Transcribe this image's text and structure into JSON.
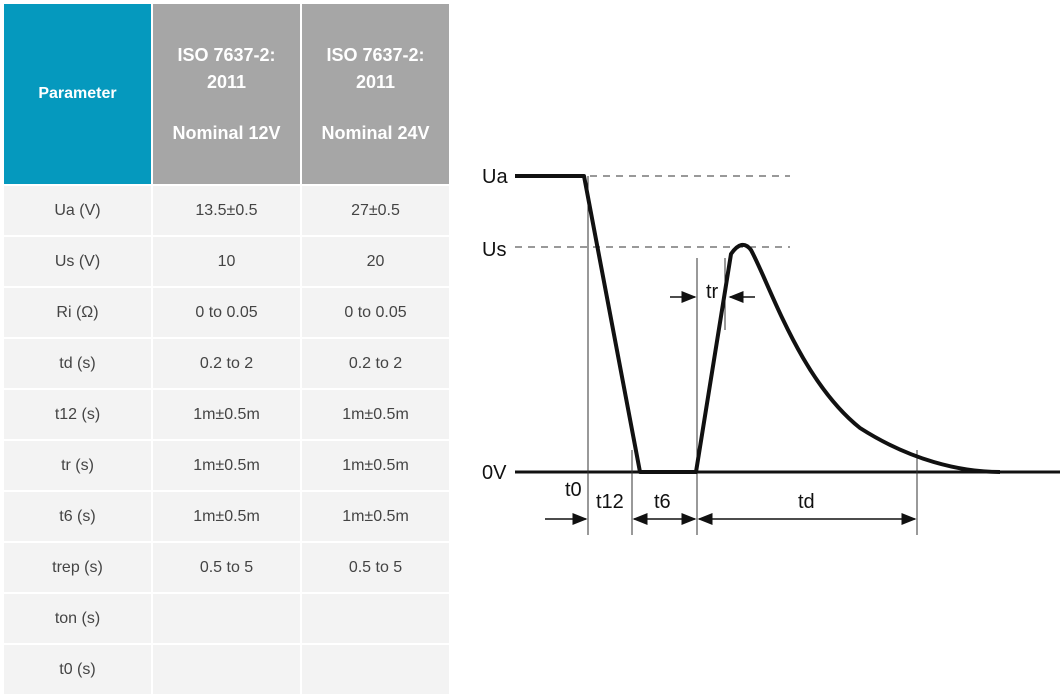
{
  "table": {
    "header": {
      "parameter": "Parameter",
      "col12": {
        "line1": "ISO 7637-2:",
        "line2": "2011",
        "line3": "Nominal 12V"
      },
      "col24": {
        "line1": "ISO 7637-2:",
        "line2": "2011",
        "line3": "Nominal 24V"
      }
    },
    "rows": [
      {
        "param": "Ua (V)",
        "v12": "13.5±0.5",
        "v24": "27±0.5"
      },
      {
        "param": "Us (V)",
        "v12": "10",
        "v24": "20"
      },
      {
        "param": "Ri (Ω)",
        "v12": "0 to 0.05",
        "v24": "0 to 0.05"
      },
      {
        "param": "td (s)",
        "v12": "0.2 to 2",
        "v24": "0.2 to 2"
      },
      {
        "param": "t12 (s)",
        "v12": "1m±0.5m",
        "v24": "1m±0.5m"
      },
      {
        "param": "tr (s)",
        "v12": "1m±0.5m",
        "v24": "1m±0.5m"
      },
      {
        "param": "t6 (s)",
        "v12": "1m±0.5m",
        "v24": "1m±0.5m"
      },
      {
        "param": "trep (s)",
        "v12": "0.5 to 5",
        "v24": "0.5 to 5"
      },
      {
        "param": "ton (s)",
        "v12": "",
        "v24": ""
      },
      {
        "param": "t0 (s)",
        "v12": "",
        "v24": ""
      }
    ],
    "colors": {
      "param_header": "#0599be",
      "std_header": "#a6a6a6",
      "cell_bg": "#f3f3f3"
    }
  },
  "diagram": {
    "labels": {
      "ua": "Ua",
      "us": "Us",
      "zero": "0V",
      "tr": "tr",
      "t0": "t0",
      "t12": "t12",
      "t6": "t6",
      "td": "td"
    }
  }
}
